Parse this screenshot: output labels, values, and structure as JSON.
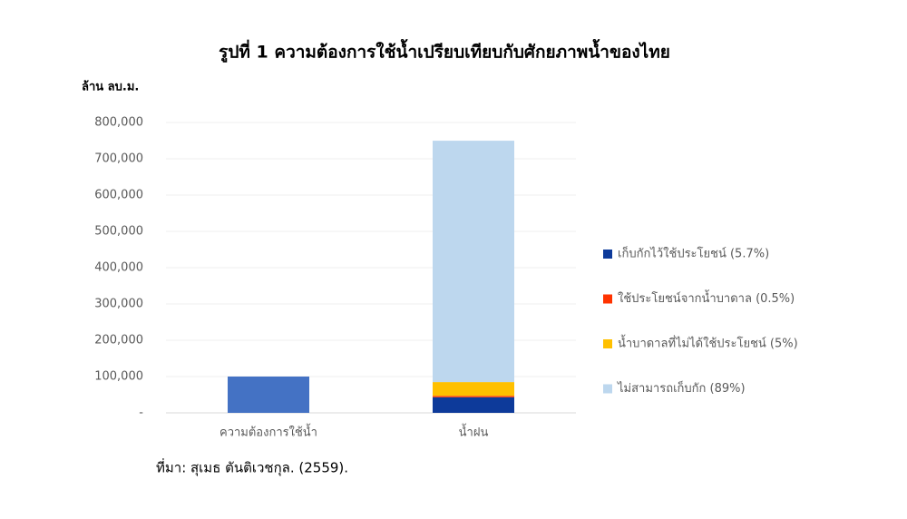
{
  "chart_data": {
    "type": "stacked_bar",
    "title": "รูปที่ 1 ความต้องการใช้น้ำเปรียบเทียบกับศักยภาพน้ำของไทย",
    "y_label": "ล้าน ลบ.ม.",
    "source": "ที่มา: สุเมธ ตันติเวชกุล. (2559).",
    "categories": [
      "ความต้องการใช้น้ำ",
      "น้ำฝน"
    ],
    "series": [
      {
        "color": "#4472c4",
        "values": [
          100000,
          null
        ]
      },
      {
        "name": "เก็บกักไว้ใช้ประโยชน์ (5.7%)",
        "color": "#0d3a9a",
        "values": [
          null,
          43000
        ]
      },
      {
        "name": "ใช้ประโยชน์จากน้ำบาดาล (0.5%)",
        "color": "#ff3300",
        "values": [
          null,
          3760
        ]
      },
      {
        "name": "น้ำบาดาลที่ไม่ได้ใช้ประโยชน์ (5%)",
        "color": "#ffc000",
        "values": [
          null,
          38000
        ]
      },
      {
        "name": "ไม่สามารถเก็บกัก (89%)",
        "color": "#bdd7ee",
        "values": [
          null,
          665000
        ]
      }
    ],
    "ylim": [
      0,
      800000
    ],
    "yticks": [
      {
        "value": 0,
        "label": "-"
      },
      {
        "value": 100000,
        "label": "100,000"
      },
      {
        "value": 200000,
        "label": "200,000"
      },
      {
        "value": 300000,
        "label": "300,000"
      },
      {
        "value": 400000,
        "label": "400,000"
      },
      {
        "value": 500000,
        "label": "500,000"
      },
      {
        "value": 600000,
        "label": "600,000"
      },
      {
        "value": 700000,
        "label": "700,000"
      },
      {
        "value": 800000,
        "label": "800,000"
      }
    ],
    "grid": true
  }
}
